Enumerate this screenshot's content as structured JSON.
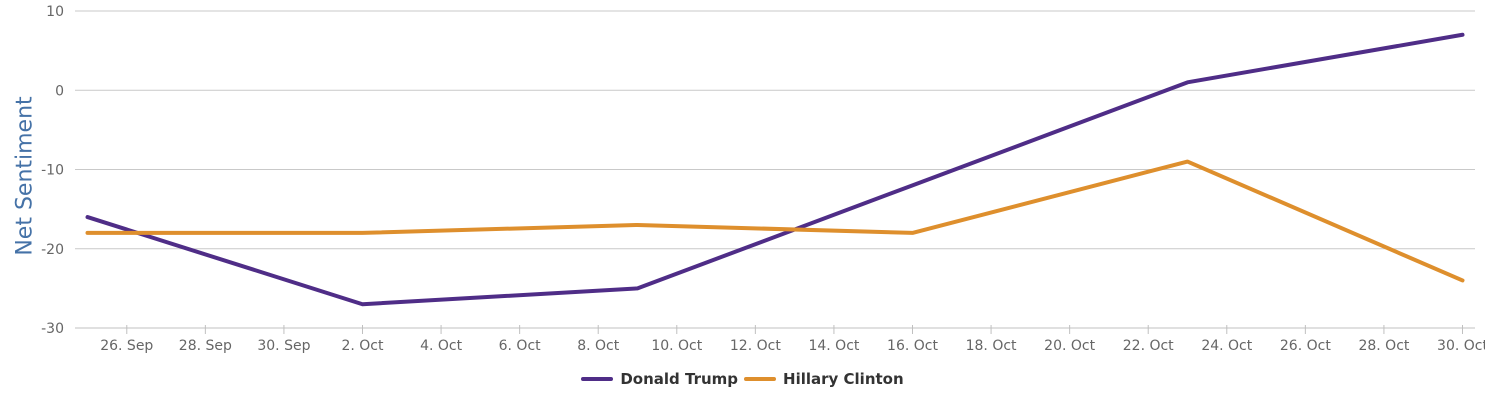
{
  "chart_data": {
    "type": "line",
    "title": "",
    "xlabel": "",
    "ylabel": "Net Sentiment",
    "x": [
      "25. Sep",
      "2. Oct",
      "9. Oct",
      "16. Oct",
      "23. Oct",
      "30. Oct"
    ],
    "series": [
      {
        "name": "Donald Trump",
        "color": "#4F2D87",
        "values": [
          -16,
          -27,
          -25,
          -12,
          1,
          7
        ]
      },
      {
        "name": "Hillary Clinton",
        "color": "#DE8F2D",
        "values": [
          -18,
          -18,
          -17,
          -18,
          -9,
          -24
        ]
      }
    ],
    "ylim": [
      -30,
      10
    ],
    "y_ticks": [
      10,
      0,
      -10,
      -20,
      -30
    ],
    "x_tick_labels": [
      "26. Sep",
      "28. Sep",
      "30. Sep",
      "2. Oct",
      "4. Oct",
      "6. Oct",
      "8. Oct",
      "10. Oct",
      "12. Oct",
      "14. Oct",
      "16. Oct",
      "18. Oct",
      "20. Oct",
      "22. Oct",
      "24. Oct",
      "26. Oct",
      "28. Oct",
      "30. Oct"
    ],
    "axis": {
      "total_days": 35,
      "first_tick_day": 1,
      "tick_step_days": 2,
      "point_step_days": 7
    },
    "grid": true,
    "legend_position": "bottom-center",
    "colors": {
      "axis_title": "#4572A7",
      "tick_label": "#666666",
      "grid": "#C9C9C9",
      "axis_line": "#C0C0C0",
      "legend_text": "#333333"
    }
  }
}
